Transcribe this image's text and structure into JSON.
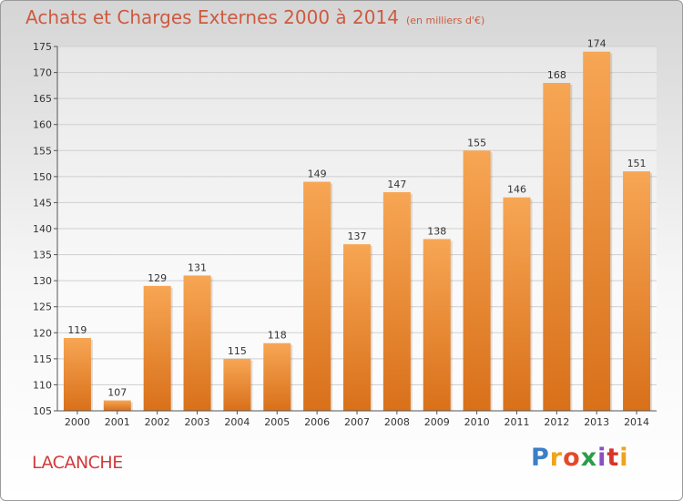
{
  "title": "Achats et Charges Externes 2000 à 2014",
  "unit": "(en milliers d'€)",
  "commune": "LACANCHE",
  "logo": {
    "letters": [
      "P",
      "r",
      "o",
      "x",
      "i",
      "t",
      "i"
    ],
    "colors": [
      "#3b7fc6",
      "#f0a31a",
      "#e34a2a",
      "#2a9d4a",
      "#8a4fc4",
      "#d8342c",
      "#f0a31a"
    ]
  },
  "colors": {
    "bar_top": "#f7a654",
    "bar_bottom": "#d9701a",
    "axis": "#555555",
    "grid": "#cfcfcf",
    "title": "#ce5a3f",
    "commune": "#d33a3a"
  },
  "chart_data": {
    "type": "bar",
    "categories": [
      "2000",
      "2001",
      "2002",
      "2003",
      "2004",
      "2005",
      "2006",
      "2007",
      "2008",
      "2009",
      "2010",
      "2011",
      "2012",
      "2013",
      "2014"
    ],
    "values": [
      119,
      107,
      129,
      131,
      115,
      118,
      149,
      137,
      147,
      138,
      155,
      146,
      168,
      174,
      151
    ],
    "ylim": [
      105,
      175
    ],
    "yticks": [
      105,
      110,
      115,
      120,
      125,
      130,
      135,
      140,
      145,
      150,
      155,
      160,
      165,
      170,
      175
    ],
    "grid": true,
    "data_labels": true
  }
}
